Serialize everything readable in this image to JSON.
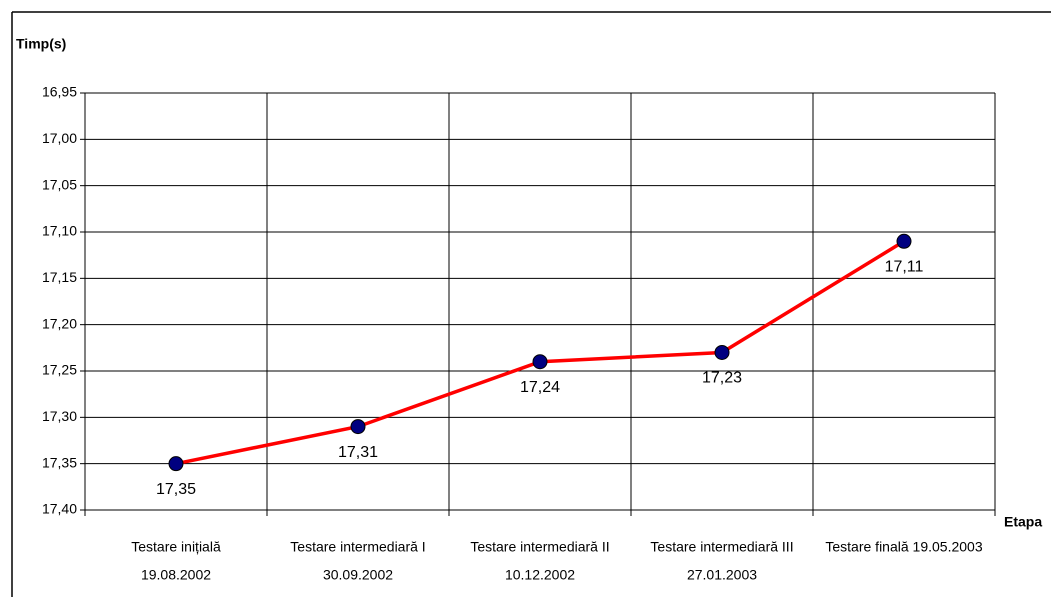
{
  "chart_data": {
    "type": "line",
    "y_title": "Timp(s)",
    "x_title": "Etapa",
    "categories": [
      [
        "Testare inițială",
        "19.08.2002"
      ],
      [
        "Testare intermediară I",
        "30.09.2002"
      ],
      [
        "Testare intermediară II",
        "10.12.2002"
      ],
      [
        "Testare intermediară III",
        "27.01.2003"
      ],
      [
        "Testare finală  19.05.2003"
      ]
    ],
    "series": [
      {
        "color": "#ff0000",
        "marker_color": "#000080",
        "values": [
          17.35,
          17.31,
          17.24,
          17.23,
          17.11
        ],
        "value_labels": [
          "17,35",
          "17,31",
          "17,24",
          "17,23",
          "17,11"
        ]
      }
    ],
    "ylim": [
      17.4,
      16.95
    ],
    "yticks": [
      {
        "value": 16.95,
        "label": "16,95"
      },
      {
        "value": 17.0,
        "label": "17,00"
      },
      {
        "value": 17.05,
        "label": "17,05"
      },
      {
        "value": 17.1,
        "label": "17,10"
      },
      {
        "value": 17.15,
        "label": "17,15"
      },
      {
        "value": 17.2,
        "label": "17,20"
      },
      {
        "value": 17.25,
        "label": "17,25"
      },
      {
        "value": 17.3,
        "label": "17,30"
      },
      {
        "value": 17.35,
        "label": "17,35"
      },
      {
        "value": 17.4,
        "label": "17,40"
      }
    ],
    "grid": true
  }
}
